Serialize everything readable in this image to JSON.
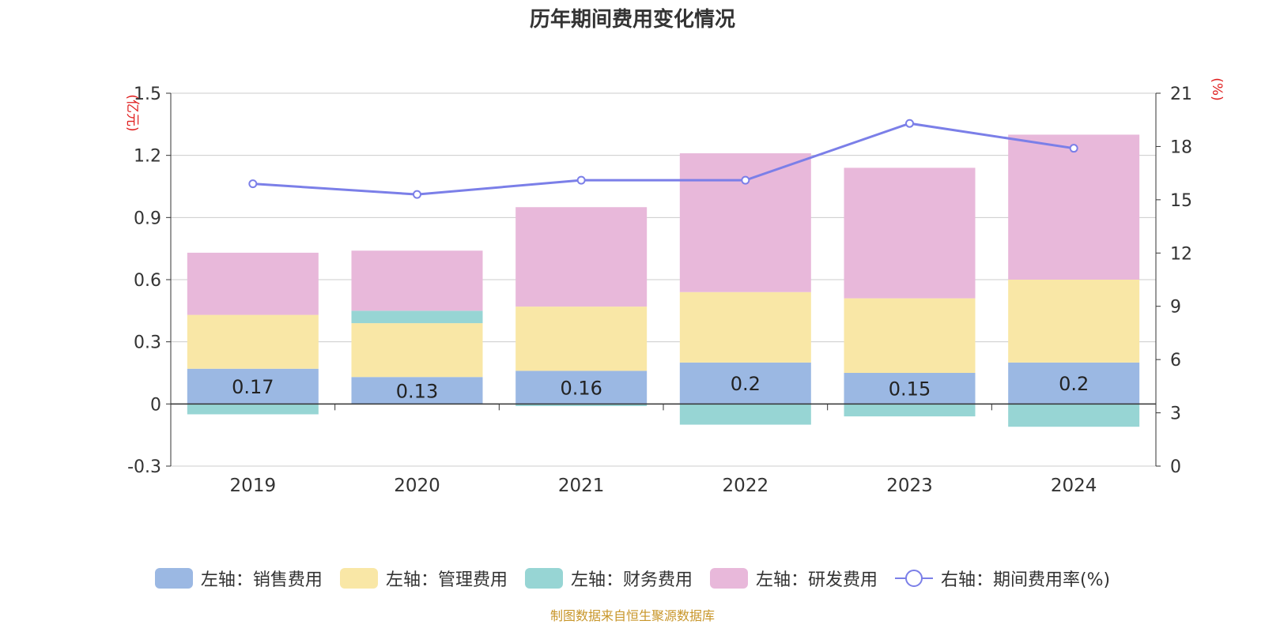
{
  "chart_data": {
    "type": "bar",
    "title": "历年期间费用变化情况",
    "categories": [
      "2019",
      "2020",
      "2021",
      "2022",
      "2023",
      "2024"
    ],
    "left_axis": {
      "unit": "(亿元)",
      "ylim": [
        -0.3,
        1.5
      ],
      "ticks": [
        "-0.3",
        "0",
        "0.3",
        "0.6",
        "0.9",
        "1.2",
        "1.5"
      ]
    },
    "right_axis": {
      "unit": "(%)",
      "ylim": [
        0,
        21
      ],
      "ticks": [
        "0",
        "3",
        "6",
        "9",
        "12",
        "15",
        "18",
        "21"
      ]
    },
    "series": [
      {
        "name": "左轴：销售费用",
        "type": "bar",
        "color": "#9bb8e3",
        "values": [
          0.17,
          0.13,
          0.16,
          0.2,
          0.15,
          0.2
        ],
        "labels": [
          "0.17",
          "0.13",
          "0.16",
          "0.2",
          "0.15",
          "0.2"
        ]
      },
      {
        "name": "左轴：管理费用",
        "type": "bar",
        "color": "#f9e7a6",
        "values": [
          0.26,
          0.26,
          0.31,
          0.34,
          0.36,
          0.4
        ]
      },
      {
        "name": "左轴：财务费用",
        "type": "bar",
        "color": "#97d5d4",
        "values": [
          -0.05,
          0.06,
          -0.01,
          -0.1,
          -0.06,
          -0.11
        ]
      },
      {
        "name": "左轴：研发费用",
        "type": "bar",
        "color": "#e8b8da",
        "values": [
          0.3,
          0.29,
          0.48,
          0.67,
          0.63,
          0.7
        ]
      },
      {
        "name": "右轴：期间费用率(%)",
        "type": "line",
        "color": "#7b7fe8",
        "values": [
          15.9,
          15.3,
          16.1,
          16.1,
          19.3,
          17.9
        ]
      }
    ],
    "grid": true,
    "legend_position": "bottom"
  },
  "source_text": "制图数据来自恒生聚源数据库"
}
